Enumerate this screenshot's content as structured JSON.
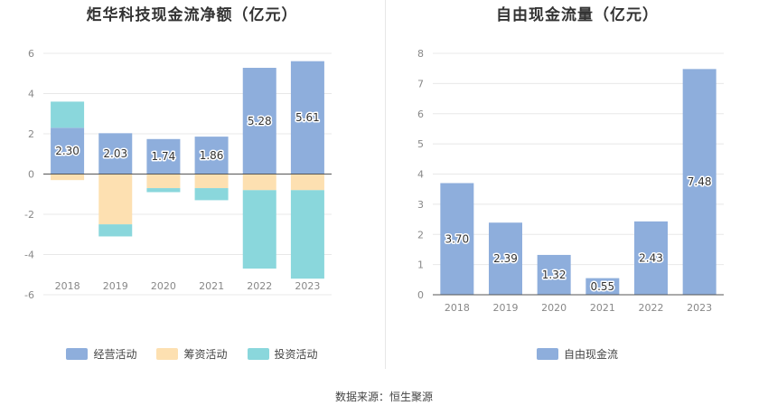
{
  "source_text": "数据来源：恒生聚源",
  "chart_data": [
    {
      "type": "bar",
      "stacked": true,
      "title": "炬华科技现金流净额（亿元）",
      "categories": [
        "2018",
        "2019",
        "2020",
        "2021",
        "2022",
        "2023"
      ],
      "ylim": [
        -6,
        6
      ],
      "yticks": [
        -6,
        -4,
        -2,
        0,
        2,
        4,
        6
      ],
      "grid": true,
      "legend_position": "bottom",
      "series": [
        {
          "name": "经营活动",
          "color": "#8eaedc",
          "values": [
            2.3,
            2.03,
            1.74,
            1.86,
            5.28,
            5.61
          ],
          "labels": [
            "2.30",
            "2.03",
            "1.74",
            "1.86",
            "5.28",
            "5.61"
          ]
        },
        {
          "name": "筹资活动",
          "color": "#fde0b1",
          "values": [
            -0.3,
            -2.5,
            -0.7,
            -0.7,
            -0.8,
            -0.8
          ]
        },
        {
          "name": "投资活动",
          "color": "#8ad7dc",
          "values": [
            1.3,
            -0.6,
            -0.2,
            -0.6,
            -3.9,
            -4.4
          ]
        }
      ]
    },
    {
      "type": "bar",
      "title": "自由现金流量（亿元）",
      "categories": [
        "2018",
        "2019",
        "2020",
        "2021",
        "2022",
        "2023"
      ],
      "ylim": [
        0,
        8
      ],
      "yticks": [
        0,
        1,
        2,
        3,
        4,
        5,
        6,
        7,
        8
      ],
      "grid": true,
      "legend_position": "bottom",
      "series": [
        {
          "name": "自由现金流",
          "color": "#8eaedc",
          "values": [
            3.7,
            2.39,
            1.32,
            0.55,
            2.43,
            7.48
          ],
          "labels": [
            "3.70",
            "2.39",
            "1.32",
            "0.55",
            "2.43",
            "7.48"
          ]
        }
      ]
    }
  ]
}
